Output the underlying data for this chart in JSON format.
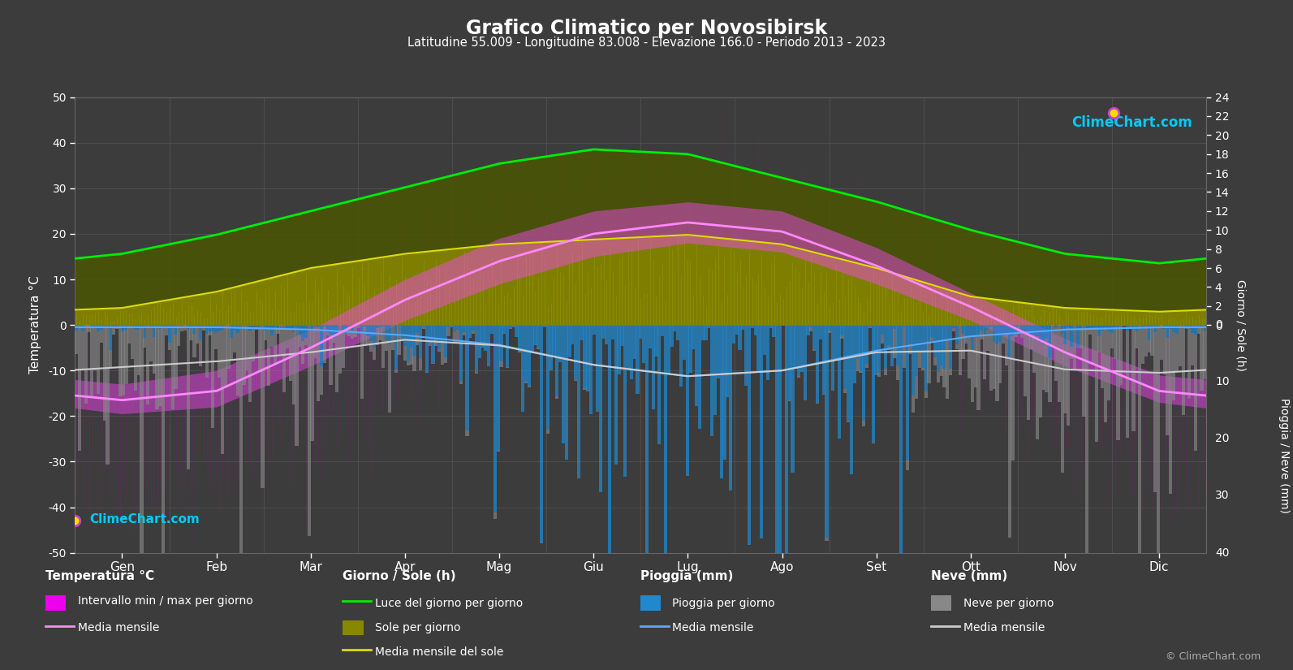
{
  "title": "Grafico Climatico per Novosibirsk",
  "subtitle": "Latitudine 55.009 - Longitudine 83.008 - Elevazione 166.0 - Periodo 2013 - 2023",
  "months": [
    "Gen",
    "Feb",
    "Mar",
    "Apr",
    "Mag",
    "Giu",
    "Lug",
    "Ago",
    "Set",
    "Ott",
    "Nov",
    "Dic"
  ],
  "temp_min_mean": [
    -19.5,
    -18.0,
    -9.0,
    1.0,
    9.0,
    15.0,
    18.0,
    16.0,
    9.0,
    1.0,
    -9.0,
    -17.0
  ],
  "temp_max_mean": [
    -13.0,
    -10.0,
    -1.0,
    10.0,
    19.0,
    25.0,
    27.0,
    25.0,
    17.0,
    7.0,
    -3.0,
    -11.0
  ],
  "temp_avg_mean": [
    -16.5,
    -14.5,
    -5.0,
    5.5,
    14.0,
    20.0,
    22.5,
    20.5,
    13.0,
    4.0,
    -6.0,
    -14.5
  ],
  "temp_min_abs": [
    -42.0,
    -40.0,
    -35.0,
    -20.0,
    -5.0,
    2.0,
    6.0,
    4.0,
    -3.0,
    -18.0,
    -35.0,
    -43.0
  ],
  "temp_max_abs": [
    -2.0,
    1.0,
    12.0,
    24.0,
    32.0,
    36.0,
    37.0,
    35.0,
    28.0,
    18.0,
    5.0,
    0.0
  ],
  "daylight_hours": [
    7.5,
    9.5,
    12.0,
    14.5,
    17.0,
    18.5,
    18.0,
    15.5,
    13.0,
    10.0,
    7.5,
    6.5
  ],
  "sunshine_mean": [
    1.8,
    3.5,
    6.0,
    7.5,
    8.5,
    9.0,
    9.5,
    8.5,
    6.0,
    3.0,
    1.8,
    1.4
  ],
  "rain_daily_mean": [
    0.5,
    0.5,
    1.0,
    2.0,
    4.0,
    8.0,
    10.0,
    9.0,
    5.0,
    2.5,
    1.0,
    0.5
  ],
  "rain_mean": [
    0.4,
    0.4,
    0.8,
    1.8,
    3.5,
    7.0,
    9.0,
    8.0,
    4.5,
    2.0,
    0.8,
    0.4
  ],
  "snow_daily_mean": [
    8.0,
    7.0,
    5.0,
    1.0,
    0.2,
    0.0,
    0.0,
    0.0,
    0.5,
    3.0,
    8.0,
    9.0
  ],
  "snow_mean": [
    7.0,
    6.0,
    4.0,
    0.8,
    0.1,
    0.0,
    0.0,
    0.0,
    0.3,
    2.5,
    7.0,
    8.0
  ],
  "bg_color": "#3c3c3c",
  "plot_bg_color": "#3c3c3c",
  "grid_color": "#606060",
  "text_color": "#ffffff",
  "temp_ylim": [
    -50,
    50
  ],
  "sun_ylim": [
    0,
    24
  ],
  "precip_ylim_mm": 40,
  "dpi": 100,
  "figsize": [
    15.93,
    8.25
  ]
}
